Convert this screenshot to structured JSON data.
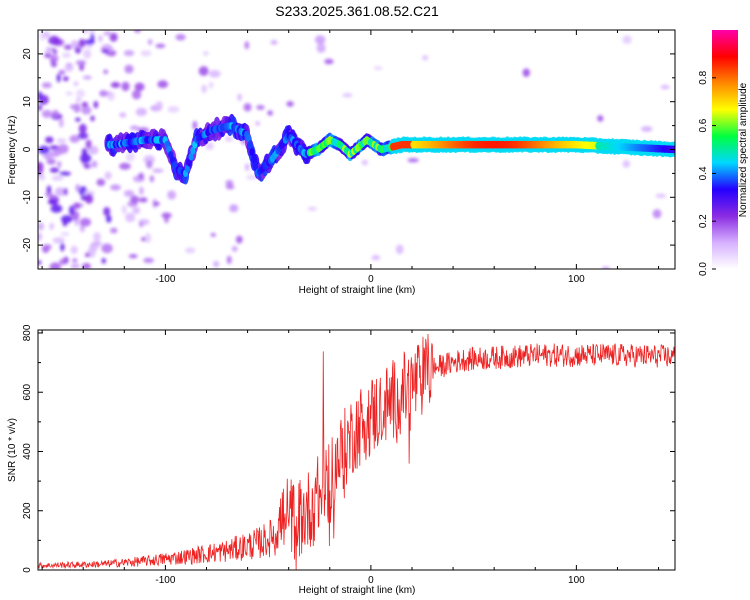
{
  "title": "S233.2025.361.08.52.C21",
  "chart_data": [
    {
      "type": "heatmap",
      "name": "spectrogram",
      "xlabel": "Height of straight line (km)",
      "ylabel": "Frequency (Hz)",
      "xlim": [
        -162,
        148
      ],
      "ylim": [
        -25,
        25
      ],
      "xticks": [
        -100,
        0,
        100
      ],
      "xtick_labels": [
        "-100",
        "0",
        "100"
      ],
      "yticks": [
        -20,
        -10,
        0,
        10,
        20
      ],
      "ytick_labels": [
        "-20",
        "-10",
        "0",
        "10",
        "20"
      ],
      "ridge": [
        {
          "x": -125,
          "y": 1
        },
        {
          "x": -110,
          "y": 2
        },
        {
          "x": -100,
          "y": 2
        },
        {
          "x": -95,
          "y": -4
        },
        {
          "x": -90,
          "y": -5
        },
        {
          "x": -85,
          "y": 2
        },
        {
          "x": -78,
          "y": 4
        },
        {
          "x": -68,
          "y": 5
        },
        {
          "x": -60,
          "y": 3
        },
        {
          "x": -55,
          "y": -5
        },
        {
          "x": -48,
          "y": -2
        },
        {
          "x": -40,
          "y": 3
        },
        {
          "x": -32,
          "y": -1
        },
        {
          "x": -26,
          "y": 0
        },
        {
          "x": -20,
          "y": 2
        },
        {
          "x": -15,
          "y": 1
        },
        {
          "x": -10,
          "y": -1
        },
        {
          "x": -2,
          "y": 2
        },
        {
          "x": 5,
          "y": 0
        },
        {
          "x": 15,
          "y": 1
        },
        {
          "x": 50,
          "y": 1
        },
        {
          "x": 100,
          "y": 1
        },
        {
          "x": 148,
          "y": 0
        }
      ],
      "colorbar": {
        "label": "Normalized spectral amplitude",
        "range": [
          0,
          1
        ],
        "ticks": [
          0.0,
          0.2,
          0.4,
          0.6,
          0.8
        ],
        "tick_labels": [
          "0.0",
          "0.2",
          "0.4",
          "0.6",
          "0.8"
        ],
        "stops": [
          "#ffffff",
          "#d6b0ff",
          "#8a2be2",
          "#2400ff",
          "#00d8ff",
          "#00ff40",
          "#ffff00",
          "#ff8800",
          "#ff0000",
          "#ff00aa"
        ]
      }
    },
    {
      "type": "line",
      "name": "snr",
      "xlabel": "Height of straight line (km)",
      "ylabel": "SNR (10 * v/v)",
      "xlim": [
        -162,
        148
      ],
      "ylim": [
        0,
        810
      ],
      "xticks": [
        -100,
        0,
        100
      ],
      "xtick_labels": [
        "-100",
        "0",
        "100"
      ],
      "yticks": [
        0,
        200,
        400,
        600,
        800
      ],
      "ytick_labels": [
        "0",
        "200",
        "400",
        "600",
        "800"
      ],
      "color": "#ee2222",
      "envelope": [
        {
          "x": -162,
          "y": 15
        },
        {
          "x": -130,
          "y": 20
        },
        {
          "x": -110,
          "y": 30
        },
        {
          "x": -90,
          "y": 45
        },
        {
          "x": -70,
          "y": 65
        },
        {
          "x": -55,
          "y": 90
        },
        {
          "x": -48,
          "y": 110
        },
        {
          "x": -42,
          "y": 180
        },
        {
          "x": -35,
          "y": 170
        },
        {
          "x": -28,
          "y": 220
        },
        {
          "x": -22,
          "y": 300
        },
        {
          "x": -15,
          "y": 380
        },
        {
          "x": -8,
          "y": 470
        },
        {
          "x": 0,
          "y": 520
        },
        {
          "x": 10,
          "y": 570
        },
        {
          "x": 20,
          "y": 620
        },
        {
          "x": 30,
          "y": 680
        },
        {
          "x": 45,
          "y": 710
        },
        {
          "x": 80,
          "y": 725
        },
        {
          "x": 120,
          "y": 725
        },
        {
          "x": 148,
          "y": 720
        }
      ]
    }
  ]
}
